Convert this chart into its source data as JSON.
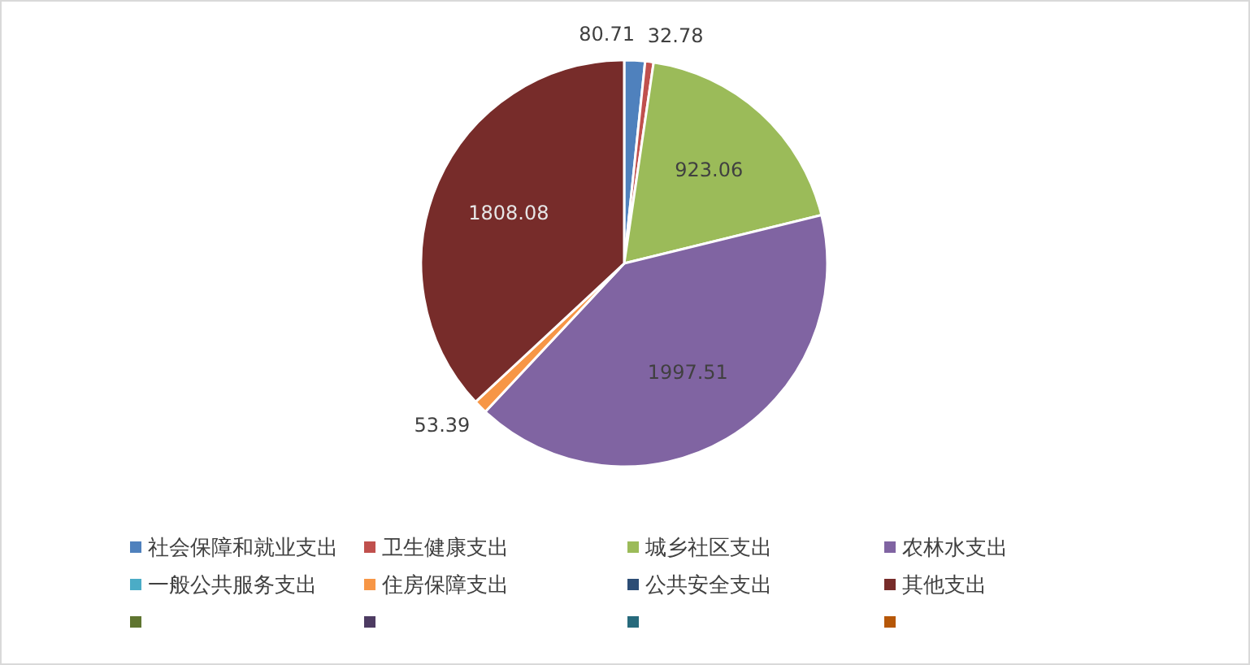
{
  "chart_data": {
    "type": "pie",
    "categories": [
      "社会保障和就业支出",
      "卫生健康支出",
      "城乡社区支出",
      "农林水支出",
      "一般公共服务支出",
      "住房保障支出",
      "公共安全支出",
      "其他支出",
      null,
      null,
      null,
      null
    ],
    "values": [
      80.71,
      32.78,
      923.06,
      1997.51,
      null,
      53.39,
      null,
      1808.08,
      null,
      null,
      null,
      null
    ],
    "colors": [
      "#4f81bd",
      "#c0504d",
      "#9bbb59",
      "#8064a2",
      "#4bacc6",
      "#f79646",
      "#2c4d75",
      "#772c2a",
      "#5f7530",
      "#4d3b62",
      "#276a7c",
      "#b65708"
    ],
    "data_labels": true,
    "legend": "bottom"
  }
}
